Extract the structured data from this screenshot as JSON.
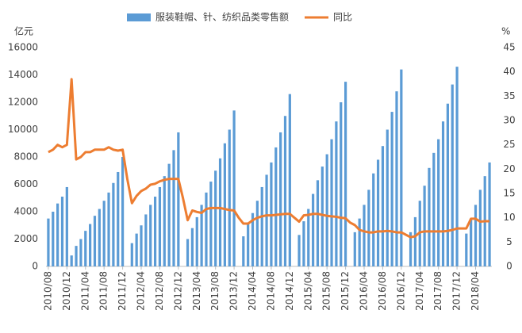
{
  "chart_data": {
    "type": "bar_line",
    "y_label": "亿元",
    "y2_label": "%",
    "categories": [
      "2010/08",
      null,
      null,
      null,
      "2010/12",
      null,
      null,
      null,
      "2011/04",
      null,
      null,
      null,
      "2011/08",
      null,
      null,
      null,
      "2011/12",
      null,
      null,
      null,
      "2012/04",
      null,
      null,
      null,
      "2012/08",
      null,
      null,
      null,
      "2012/12",
      null,
      null,
      null,
      "2013/04",
      null,
      null,
      null,
      "2013/08",
      null,
      null,
      null,
      "2013/12",
      null,
      null,
      null,
      "2014/04",
      null,
      null,
      null,
      "2014/08",
      null,
      null,
      null,
      "2014/12",
      null,
      null,
      null,
      "2015/04",
      null,
      null,
      null,
      "2015/08",
      null,
      null,
      null,
      "2015/12",
      null,
      null,
      null,
      "2016/04",
      null,
      null,
      null,
      "2016/08",
      null,
      null,
      null,
      "2016/12",
      null,
      null,
      null,
      "2017/04",
      null,
      null,
      null,
      "2017/08",
      null,
      null,
      null,
      "2017/12",
      null,
      null,
      null,
      "2018/04",
      null,
      null,
      null
    ],
    "series": [
      {
        "name": "服装鞋帽、针、纺织品类零售额",
        "color": "#5b9bd5",
        "kind": "bar",
        "values": [
          3500,
          4000,
          4600,
          5100,
          5800,
          800,
          1500,
          2000,
          2600,
          3100,
          3700,
          4200,
          4800,
          5400,
          6100,
          6900,
          8000,
          null,
          1700,
          2400,
          3000,
          3800,
          4500,
          5100,
          5800,
          6600,
          7500,
          8500,
          9800,
          null,
          2000,
          2800,
          3600,
          4500,
          5400,
          6200,
          7000,
          7900,
          9000,
          10000,
          11400,
          null,
          2200,
          3200,
          3900,
          4800,
          5800,
          6700,
          7600,
          8700,
          9800,
          11000,
          12600,
          null,
          2300,
          3300,
          4200,
          5300,
          6300,
          7300,
          8200,
          9300,
          10600,
          12000,
          13500,
          null,
          2500,
          3500,
          4500,
          5600,
          6800,
          7800,
          8800,
          10000,
          11300,
          12800,
          14400,
          null,
          2500,
          3600,
          4800,
          5900,
          7200,
          8300,
          9300,
          10600,
          11900,
          13300,
          14600,
          null,
          2400,
          3500,
          4500,
          5600,
          6600,
          7600
        ]
      },
      {
        "name": "同比",
        "color": "#ed7d31",
        "kind": "line",
        "axis": "y2",
        "values": [
          23.5,
          24,
          25,
          24.5,
          25,
          38.5,
          22,
          22.5,
          23.5,
          23.5,
          24,
          24,
          24,
          24.5,
          24,
          23.8,
          24,
          18,
          13,
          14.5,
          15.5,
          16,
          16.8,
          17,
          17.5,
          17.8,
          18,
          18,
          18,
          14,
          9.5,
          11.5,
          11.2,
          11,
          11.8,
          12,
          12,
          12,
          11.8,
          11.6,
          11.5,
          10,
          8.8,
          8.8,
          9.5,
          10,
          10.3,
          10.5,
          10.5,
          10.6,
          10.7,
          10.8,
          10.8,
          10,
          9.2,
          10.5,
          10.6,
          10.8,
          10.8,
          10.6,
          10.4,
          10.3,
          10.2,
          10,
          9.9,
          9,
          8.5,
          7.5,
          7.2,
          7,
          7,
          7.2,
          7.2,
          7.3,
          7.2,
          7,
          7,
          6.5,
          6,
          6.2,
          7,
          7.2,
          7.2,
          7.2,
          7.2,
          7.2,
          7.3,
          7.5,
          7.8,
          7.8,
          7.8,
          9.8,
          9.8,
          9.2,
          9.3,
          9.3
        ]
      }
    ],
    "ylim": [
      0,
      16000
    ],
    "yticks": [
      0,
      2000,
      4000,
      6000,
      8000,
      10000,
      12000,
      14000,
      16000
    ],
    "y2lim": [
      0,
      45
    ],
    "y2ticks": [
      0,
      5,
      10,
      15,
      20,
      25,
      30,
      35,
      40,
      45
    ],
    "legend": "top"
  }
}
